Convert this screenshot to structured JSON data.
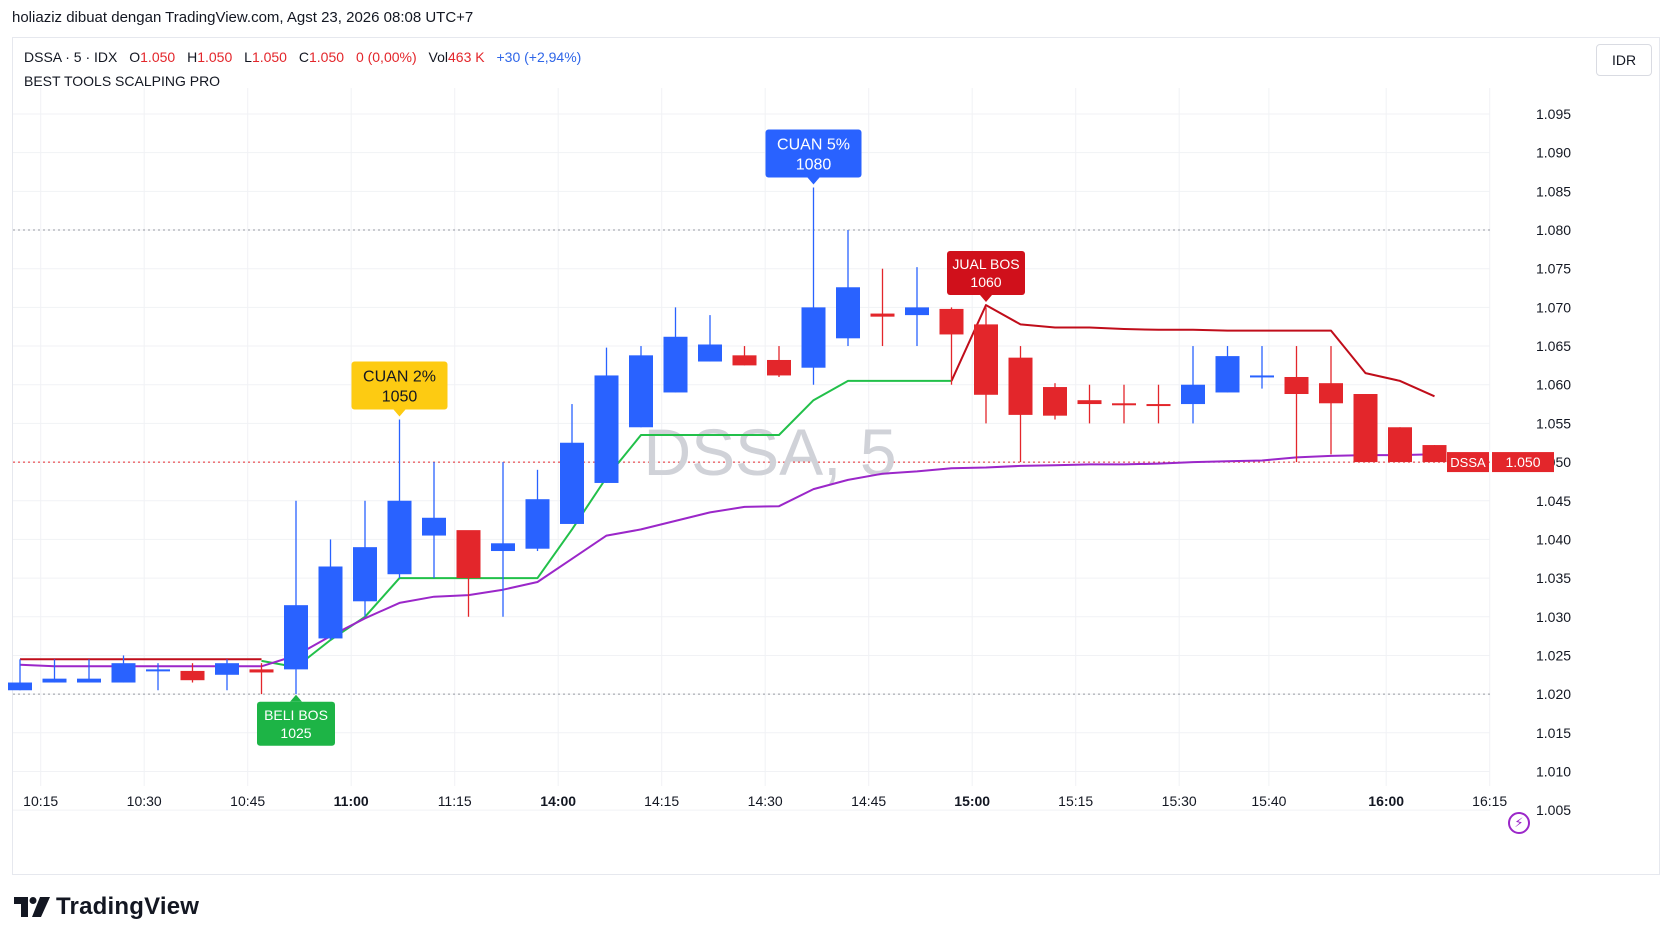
{
  "header": {
    "attribution": "holiaziz dibuat dengan TradingView.com, Agst 23, 2026 08:08 UTC+7"
  },
  "legend": {
    "symbol": "DSSA · 5 · IDX",
    "o_label": "O",
    "o_value": "1.050",
    "h_label": "H",
    "h_value": "1.050",
    "l_label": "L",
    "l_value": "1.050",
    "c_label": "C",
    "c_value": "1.050",
    "change": "0 (0,00%)",
    "vol_label": "Vol",
    "vol_value": "463 K",
    "extra": "+30 (+2,94%)",
    "indicator": "BEST TOOLS SCALPING PRO"
  },
  "currency_button": "IDR",
  "watermark": "DSSA, 5",
  "price_tag": {
    "symbol": "DSSA",
    "value": "1.050"
  },
  "footer": {
    "brand": "TradingView"
  },
  "colors": {
    "up": "#2962ff",
    "down": "#e3262b",
    "green_line": "#22c04a",
    "purple_line": "#9b27c9",
    "red_line": "#c00d1a",
    "accent_red": "#e3262b",
    "accent_blue": "#2f66e8"
  },
  "chart_data": {
    "type": "candlestick",
    "ylim": [
      1.001,
      1.1
    ],
    "y_ticks": [
      "1.095",
      "1.090",
      "1.085",
      "1.080",
      "1.075",
      "1.070",
      "1.065",
      "1.060",
      "1.055",
      "1.050",
      "1.045",
      "1.040",
      "1.035",
      "1.030",
      "1.025",
      "1.020",
      "1.015",
      "1.010",
      "1.005"
    ],
    "x_ticks": [
      {
        "label": "10:15",
        "bold": false,
        "i": 0.6
      },
      {
        "label": "10:30",
        "bold": false,
        "i": 3.6
      },
      {
        "label": "10:45",
        "bold": false,
        "i": 6.6
      },
      {
        "label": "11:00",
        "bold": true,
        "i": 9.6
      },
      {
        "label": "11:15",
        "bold": false,
        "i": 12.6
      },
      {
        "label": "14:00",
        "bold": true,
        "i": 15.6
      },
      {
        "label": "14:15",
        "bold": false,
        "i": 18.6
      },
      {
        "label": "14:30",
        "bold": false,
        "i": 21.6
      },
      {
        "label": "14:45",
        "bold": false,
        "i": 24.6
      },
      {
        "label": "15:00",
        "bold": true,
        "i": 27.6
      },
      {
        "label": "15:15",
        "bold": false,
        "i": 30.6
      },
      {
        "label": "15:30",
        "bold": false,
        "i": 33.6
      },
      {
        "label": "15:40",
        "bold": false,
        "i": 36.2
      },
      {
        "label": "16:00",
        "bold": true,
        "i": 39.6
      },
      {
        "label": "16:15",
        "bold": false,
        "i": 42.6
      }
    ],
    "dotted_levels": [
      1.08,
      1.05,
      1.02
    ],
    "candles": [
      {
        "o": 1.0205,
        "h": 1.0245,
        "l": 1.0205,
        "c": 1.0215
      },
      {
        "o": 1.0215,
        "h": 1.0245,
        "l": 1.0215,
        "c": 1.022
      },
      {
        "o": 1.0215,
        "h": 1.0245,
        "l": 1.0215,
        "c": 1.022
      },
      {
        "o": 1.0215,
        "h": 1.025,
        "l": 1.0215,
        "c": 1.024
      },
      {
        "o": 1.023,
        "h": 1.024,
        "l": 1.0205,
        "c": 1.0232
      },
      {
        "o": 1.023,
        "h": 1.024,
        "l": 1.0215,
        "c": 1.0218
      },
      {
        "o": 1.0225,
        "h": 1.0245,
        "l": 1.0205,
        "c": 1.024
      },
      {
        "o": 1.0232,
        "h": 1.024,
        "l": 1.02,
        "c": 1.0228
      },
      {
        "o": 1.0232,
        "h": 1.045,
        "l": 1.02,
        "c": 1.0315
      },
      {
        "o": 1.0272,
        "h": 1.04,
        "l": 1.027,
        "c": 1.0365
      },
      {
        "o": 1.032,
        "h": 1.045,
        "l": 1.03,
        "c": 1.039
      },
      {
        "o": 1.0355,
        "h": 1.0555,
        "l": 1.035,
        "c": 1.045
      },
      {
        "o": 1.0405,
        "h": 1.05,
        "l": 1.035,
        "c": 1.0428
      },
      {
        "o": 1.0412,
        "h": 1.041,
        "l": 1.03,
        "c": 1.035
      },
      {
        "o": 1.0385,
        "h": 1.05,
        "l": 1.03,
        "c": 1.0395
      },
      {
        "o": 1.0388,
        "h": 1.049,
        "l": 1.0385,
        "c": 1.0452
      },
      {
        "o": 1.042,
        "h": 1.0575,
        "l": 1.042,
        "c": 1.0525
      },
      {
        "o": 1.0473,
        "h": 1.0648,
        "l": 1.0473,
        "c": 1.0612
      },
      {
        "o": 1.0545,
        "h": 1.065,
        "l": 1.0545,
        "c": 1.0638
      },
      {
        "o": 1.059,
        "h": 1.07,
        "l": 1.059,
        "c": 1.0662
      },
      {
        "o": 1.063,
        "h": 1.069,
        "l": 1.063,
        "c": 1.0652
      },
      {
        "o": 1.0638,
        "h": 1.065,
        "l": 1.0625,
        "c": 1.0625
      },
      {
        "o": 1.0632,
        "h": 1.065,
        "l": 1.061,
        "c": 1.0612
      },
      {
        "o": 1.0622,
        "h": 1.0855,
        "l": 1.06,
        "c": 1.07
      },
      {
        "o": 1.066,
        "h": 1.08,
        "l": 1.065,
        "c": 1.0726
      },
      {
        "o": 1.0692,
        "h": 1.075,
        "l": 1.065,
        "c": 1.0688
      },
      {
        "o": 1.069,
        "h": 1.0752,
        "l": 1.065,
        "c": 1.07
      },
      {
        "o": 1.0698,
        "h": 1.07,
        "l": 1.06,
        "c": 1.0665
      },
      {
        "o": 1.0678,
        "h": 1.07,
        "l": 1.055,
        "c": 1.0587
      },
      {
        "o": 1.0635,
        "h": 1.065,
        "l": 1.05,
        "c": 1.0561
      },
      {
        "o": 1.0597,
        "h": 1.0602,
        "l": 1.0555,
        "c": 1.056
      },
      {
        "o": 1.058,
        "h": 1.06,
        "l": 1.055,
        "c": 1.0575
      },
      {
        "o": 1.0576,
        "h": 1.06,
        "l": 1.055,
        "c": 1.0574
      },
      {
        "o": 1.0575,
        "h": 1.06,
        "l": 1.055,
        "c": 1.0573
      },
      {
        "o": 1.0575,
        "h": 1.065,
        "l": 1.055,
        "c": 1.06
      },
      {
        "o": 1.059,
        "h": 1.065,
        "l": 1.059,
        "c": 1.0637
      },
      {
        "o": 1.0612,
        "h": 1.065,
        "l": 1.0595,
        "c": 1.0612
      },
      {
        "o": 1.061,
        "h": 1.065,
        "l": 1.05,
        "c": 1.0588
      },
      {
        "o": 1.0602,
        "h": 1.065,
        "l": 1.051,
        "c": 1.0576
      },
      {
        "o": 1.0588,
        "h": 1.0588,
        "l": 1.05,
        "c": 1.05
      },
      {
        "o": 1.0545,
        "h": 1.0545,
        "l": 1.05,
        "c": 1.05
      },
      {
        "o": 1.0522,
        "h": 1.0522,
        "l": 1.05,
        "c": 1.05
      }
    ],
    "series": [
      {
        "kind": "green_line",
        "segments": [
          [
            [
              7,
              1.0243
            ],
            [
              8,
              1.0235
            ],
            [
              9,
              1.027
            ],
            [
              10,
              1.03
            ],
            [
              11,
              1.035
            ],
            [
              12,
              1.035
            ],
            [
              13,
              1.035
            ],
            [
              14,
              1.035
            ],
            [
              15,
              1.035
            ],
            [
              16,
              1.0413
            ],
            [
              17,
              1.048
            ],
            [
              18,
              1.0535
            ],
            [
              19,
              1.0535
            ],
            [
              20,
              1.0535
            ],
            [
              21,
              1.0535
            ],
            [
              22,
              1.0535
            ],
            [
              23,
              1.058
            ],
            [
              24,
              1.0605
            ],
            [
              25,
              1.0605
            ],
            [
              26,
              1.0605
            ],
            [
              27,
              1.0605
            ]
          ]
        ]
      },
      {
        "kind": "purple_line",
        "segments": [
          [
            [
              0,
              1.0238
            ],
            [
              1,
              1.0236
            ],
            [
              2,
              1.0236
            ],
            [
              3,
              1.0236
            ],
            [
              4,
              1.0236
            ],
            [
              5,
              1.0236
            ],
            [
              6,
              1.0236
            ],
            [
              7,
              1.0236
            ],
            [
              8,
              1.025
            ],
            [
              9,
              1.0275
            ],
            [
              10,
              1.0298
            ],
            [
              11,
              1.0318
            ],
            [
              12,
              1.0326
            ],
            [
              13,
              1.0328
            ],
            [
              14,
              1.0335
            ],
            [
              15,
              1.0345
            ],
            [
              16,
              1.0375
            ],
            [
              17,
              1.0405
            ],
            [
              18,
              1.0413
            ],
            [
              19,
              1.0424
            ],
            [
              20,
              1.0435
            ],
            [
              21,
              1.0442
            ],
            [
              22,
              1.0443
            ],
            [
              23,
              1.0465
            ],
            [
              24,
              1.0477
            ],
            [
              25,
              1.0485
            ],
            [
              26,
              1.0488
            ],
            [
              27,
              1.0492
            ],
            [
              28,
              1.0493
            ],
            [
              29,
              1.0495
            ],
            [
              30,
              1.0496
            ],
            [
              31,
              1.0497
            ],
            [
              32,
              1.0497
            ],
            [
              33,
              1.0498
            ],
            [
              34,
              1.05
            ],
            [
              35,
              1.0501
            ],
            [
              36,
              1.0502
            ],
            [
              37,
              1.0506
            ],
            [
              38,
              1.0508
            ],
            [
              39,
              1.0509
            ],
            [
              40,
              1.0509
            ],
            [
              41,
              1.051
            ]
          ]
        ]
      },
      {
        "kind": "red_line",
        "segments": [
          [
            [
              0,
              1.0245
            ],
            [
              1,
              1.0245
            ],
            [
              2,
              1.0245
            ],
            [
              3,
              1.0245
            ],
            [
              4,
              1.0245
            ],
            [
              5,
              1.0245
            ],
            [
              6,
              1.0245
            ],
            [
              7,
              1.0245
            ]
          ],
          [
            [
              27,
              1.0605
            ],
            [
              28,
              1.0703
            ],
            [
              29,
              1.0678
            ],
            [
              30,
              1.0674
            ],
            [
              31,
              1.0674
            ],
            [
              32,
              1.0672
            ],
            [
              33,
              1.0671
            ],
            [
              34,
              1.0671
            ],
            [
              35,
              1.067
            ],
            [
              36,
              1.067
            ],
            [
              37,
              1.067
            ],
            [
              38,
              1.067
            ],
            [
              39,
              1.0615
            ],
            [
              40,
              1.0605
            ],
            [
              41,
              1.0585
            ]
          ]
        ]
      }
    ],
    "signals": [
      {
        "kind": "buy",
        "i": 8,
        "anchor": 1.0203,
        "line1": "BELI BOS",
        "line2": "1025",
        "bg": "#1db446",
        "fg": "#ffffff",
        "below": true,
        "font": 14
      },
      {
        "kind": "profit",
        "i": 11,
        "anchor": 1.0555,
        "line1": "CUAN 2%",
        "line2": "1050",
        "bg": "#fdcb12",
        "fg": "#131722",
        "below": false,
        "font": 16
      },
      {
        "kind": "profit",
        "i": 23,
        "anchor": 1.0855,
        "line1": "CUAN 5%",
        "line2": "1080",
        "bg": "#2962ff",
        "fg": "#ffffff",
        "below": false,
        "font": 16
      },
      {
        "kind": "sell",
        "i": 28,
        "anchor": 1.0703,
        "line1": "JUAL BOS",
        "line2": "1060",
        "bg": "#d0101b",
        "fg": "#ffffff",
        "below": false,
        "font": 14
      }
    ]
  }
}
